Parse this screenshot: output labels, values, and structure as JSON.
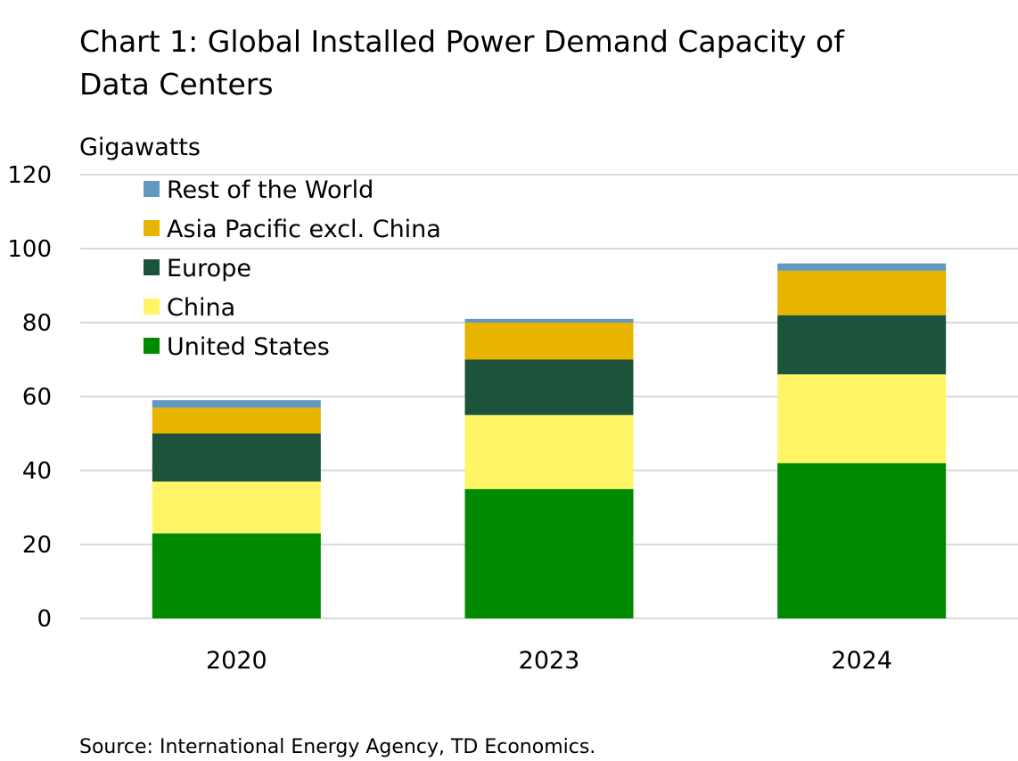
{
  "chart_data": {
    "type": "bar",
    "stacked": true,
    "title": "Chart 1: Global Installed Power Demand Capacity of Data Centers",
    "title_lines": [
      "Chart 1: Global Installed Power Demand Capacity of",
      "Data Centers"
    ],
    "ylabel": "Gigawatts",
    "xlabel": "",
    "ylim": [
      0,
      120
    ],
    "yticks": [
      0,
      20,
      40,
      60,
      80,
      100,
      120
    ],
    "grid": true,
    "legend_placement": "top-left",
    "categories": [
      "2020",
      "2023",
      "2024"
    ],
    "series": [
      {
        "name": "United States",
        "color": "#008a00",
        "values": [
          23,
          35,
          42
        ]
      },
      {
        "name": "China",
        "color": "#fff566",
        "values": [
          14,
          20,
          24
        ]
      },
      {
        "name": "Europe",
        "color": "#1c533a",
        "values": [
          13,
          15,
          16
        ]
      },
      {
        "name": "Asia Pacific excl. China",
        "color": "#e8b400",
        "values": [
          7,
          10,
          12
        ]
      },
      {
        "name": "Rest of the World",
        "color": "#6399c0",
        "values": [
          2,
          1,
          2
        ]
      }
    ],
    "source": "Source: International Energy Agency, TD Economics."
  }
}
